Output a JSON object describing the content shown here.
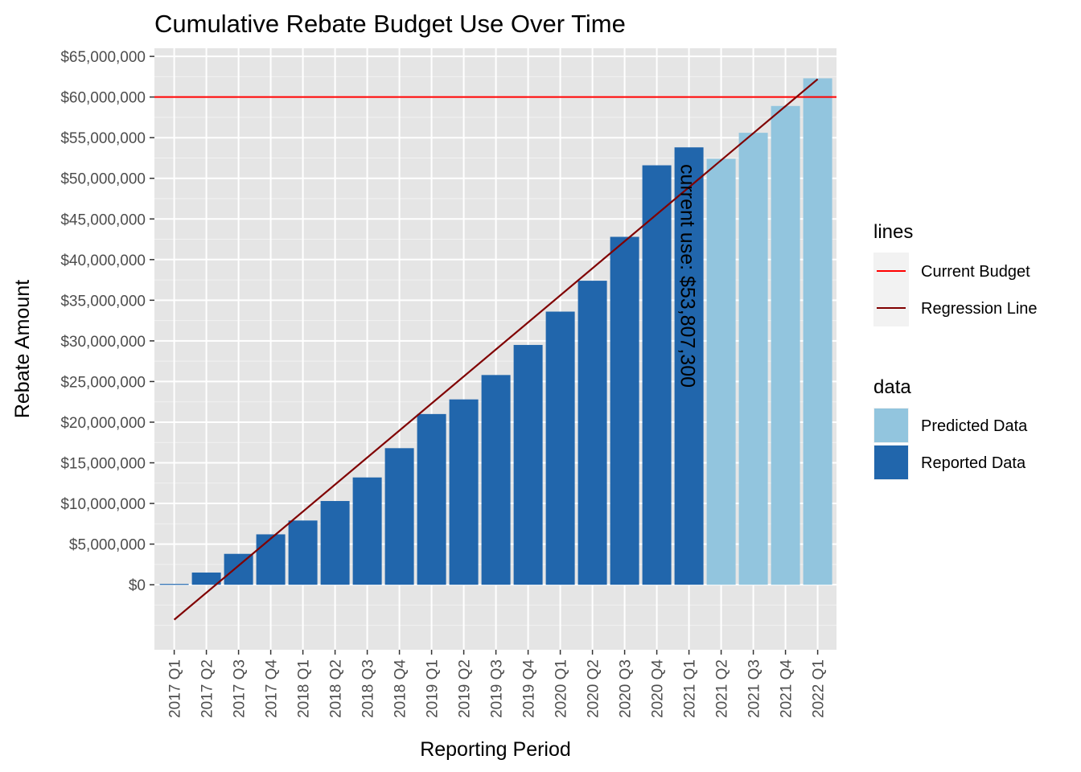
{
  "chart_data": {
    "type": "bar",
    "title": "Cumulative Rebate Budget Use Over Time",
    "xlabel": "Reporting Period",
    "ylabel": "Rebate Amount",
    "categories": [
      "2017 Q1",
      "2017 Q2",
      "2017 Q3",
      "2017 Q4",
      "2018 Q1",
      "2018 Q2",
      "2018 Q3",
      "2018 Q4",
      "2019 Q1",
      "2019 Q2",
      "2019 Q3",
      "2019 Q4",
      "2020 Q1",
      "2020 Q2",
      "2020 Q3",
      "2020 Q4",
      "2021 Q1",
      "2021 Q2",
      "2021 Q3",
      "2021 Q4",
      "2022 Q1"
    ],
    "series": [
      {
        "name": "Reported Data",
        "color": "#2166ac",
        "values": [
          100000,
          1500000,
          3800000,
          6200000,
          7900000,
          10300000,
          13200000,
          16800000,
          21000000,
          22800000,
          25800000,
          29500000,
          33600000,
          37400000,
          42800000,
          51600000,
          53807300,
          null,
          null,
          null,
          null
        ]
      },
      {
        "name": "Predicted Data",
        "color": "#92c5de",
        "values": [
          null,
          null,
          null,
          null,
          null,
          null,
          null,
          null,
          null,
          null,
          null,
          null,
          null,
          null,
          null,
          null,
          null,
          52400000,
          55600000,
          58900000,
          62300000
        ]
      }
    ],
    "lines": [
      {
        "name": "Current Budget",
        "color": "#ff0000",
        "type": "hline",
        "y": 60000000
      },
      {
        "name": "Regression Line",
        "color": "#800000",
        "type": "segment",
        "x_from": "2017 Q1",
        "y_from": -4300000,
        "x_to": "2022 Q1",
        "y_to": 62200000
      }
    ],
    "ylim": [
      -8000000,
      66000000
    ],
    "yticks": [
      0,
      5000000,
      10000000,
      15000000,
      20000000,
      25000000,
      30000000,
      35000000,
      40000000,
      45000000,
      50000000,
      55000000,
      60000000,
      65000000
    ],
    "ytick_labels": [
      "$0",
      "$5,000,000",
      "$10,000,000",
      "$15,000,000",
      "$20,000,000",
      "$25,000,000",
      "$30,000,000",
      "$35,000,000",
      "$40,000,000",
      "$45,000,000",
      "$50,000,000",
      "$55,000,000",
      "$60,000,000",
      "$65,000,000"
    ],
    "annotation": {
      "text": "current use: $53,807,300",
      "x": "2021 Q1",
      "y": 38000000
    },
    "legend": {
      "placement": "right",
      "groups": [
        {
          "title": "lines",
          "entries": [
            {
              "label": "Current Budget",
              "color": "#ff0000"
            },
            {
              "label": "Regression Line",
              "color": "#800000"
            }
          ]
        },
        {
          "title": "data",
          "entries": [
            {
              "label": "Predicted Data",
              "color": "#92c5de"
            },
            {
              "label": "Reported Data",
              "color": "#2166ac"
            }
          ]
        }
      ]
    },
    "grid": true,
    "panel_background": "#e5e5e5"
  }
}
